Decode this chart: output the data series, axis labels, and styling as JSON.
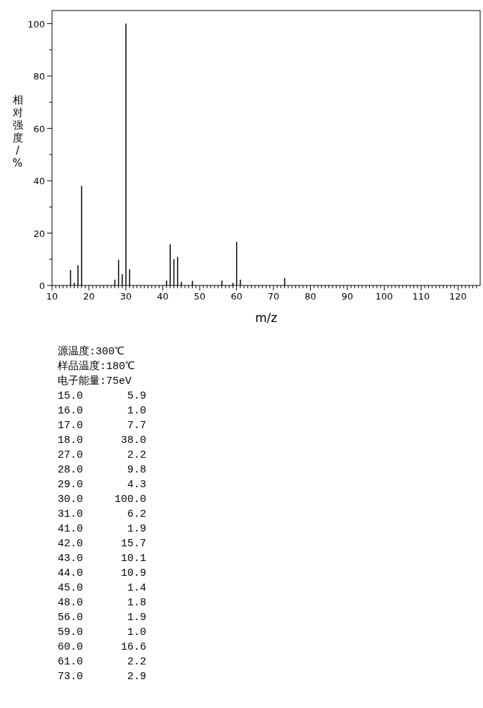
{
  "chart_data": {
    "type": "bar",
    "xlabel": "m/z",
    "ylabel": "相对强度/%",
    "color": "#000000",
    "x": [
      15,
      16,
      17,
      18,
      27,
      28,
      29,
      30,
      31,
      41,
      42,
      43,
      44,
      45,
      48,
      56,
      59,
      60,
      61,
      73
    ],
    "values": [
      5.9,
      1.0,
      7.7,
      38.0,
      2.2,
      9.8,
      4.3,
      100.0,
      6.2,
      1.9,
      15.7,
      10.1,
      10.9,
      1.4,
      1.8,
      1.9,
      1.0,
      16.6,
      2.2,
      2.9
    ],
    "xlim": [
      10,
      126
    ],
    "ylim": [
      0,
      105
    ],
    "xticks": [
      10,
      {
        "value": 11,
        "label": null
      },
      {
        "value": 12,
        "label": null
      },
      {
        "value": 13,
        "label": null
      },
      {
        "value": 14,
        "label": null
      },
      {
        "value": 15,
        "label": null
      },
      {
        "value": 16,
        "label": null
      },
      {
        "value": 17,
        "label": null
      },
      {
        "value": 18,
        "label": null
      },
      {
        "value": 19,
        "label": null
      },
      20,
      {
        "value": 21,
        "label": null
      },
      {
        "value": 22,
        "label": null
      },
      {
        "value": 23,
        "label": null
      },
      {
        "value": 24,
        "label": null
      },
      {
        "value": 25,
        "label": null
      },
      {
        "value": 26,
        "label": null
      },
      {
        "value": 27,
        "label": null
      },
      {
        "value": 28,
        "label": null
      },
      {
        "value": 29,
        "label": null
      },
      30,
      {
        "value": 31,
        "label": null
      },
      {
        "value": 32,
        "label": null
      },
      {
        "value": 33,
        "label": null
      },
      {
        "value": 34,
        "label": null
      },
      {
        "value": 35,
        "label": null
      },
      {
        "value": 36,
        "label": null
      },
      {
        "value": 37,
        "label": null
      },
      {
        "value": 38,
        "label": null
      },
      {
        "value": 39,
        "label": null
      },
      40,
      {
        "value": 41,
        "label": null
      },
      {
        "value": 42,
        "label": null
      },
      {
        "value": 43,
        "label": null
      },
      {
        "value": 44,
        "label": null
      },
      {
        "value": 45,
        "label": null
      },
      {
        "value": 46,
        "label": null
      },
      {
        "value": 47,
        "label": null
      },
      {
        "value": 48,
        "label": null
      },
      {
        "value": 49,
        "label": null
      },
      50,
      {
        "value": 51,
        "label": null
      },
      {
        "value": 52,
        "label": null
      },
      {
        "value": 53,
        "label": null
      },
      {
        "value": 54,
        "label": null
      },
      {
        "value": 55,
        "label": null
      },
      {
        "value": 56,
        "label": null
      },
      {
        "value": 57,
        "label": null
      },
      {
        "value": 58,
        "label": null
      },
      {
        "value": 59,
        "label": null
      },
      60,
      {
        "value": 61,
        "label": null
      },
      {
        "value": 62,
        "label": null
      },
      {
        "value": 63,
        "label": null
      },
      {
        "value": 64,
        "label": null
      },
      {
        "value": 65,
        "label": null
      },
      {
        "value": 66,
        "label": null
      },
      {
        "value": 67,
        "label": null
      },
      {
        "value": 68,
        "label": null
      },
      {
        "value": 69,
        "label": null
      },
      70,
      {
        "value": 71,
        "label": null
      },
      {
        "value": 72,
        "label": null
      },
      {
        "value": 73,
        "label": null
      },
      {
        "value": 74,
        "label": null
      },
      {
        "value": 75,
        "label": null
      },
      {
        "value": 76,
        "label": null
      },
      {
        "value": 77,
        "label": null
      },
      {
        "value": 78,
        "label": null
      },
      {
        "value": 79,
        "label": null
      },
      80,
      {
        "value": 81,
        "label": null
      },
      {
        "value": 82,
        "label": null
      },
      {
        "value": 83,
        "label": null
      },
      {
        "value": 84,
        "label": null
      },
      {
        "value": 85,
        "label": null
      },
      {
        "value": 86,
        "label": null
      },
      {
        "value": 87,
        "label": null
      },
      {
        "value": 88,
        "label": null
      },
      {
        "value": 89,
        "label": null
      },
      90,
      {
        "value": 91,
        "label": null
      },
      {
        "value": 92,
        "label": null
      },
      {
        "value": 93,
        "label": null
      },
      {
        "value": 94,
        "label": null
      },
      {
        "value": 95,
        "label": null
      },
      {
        "value": 96,
        "label": null
      },
      {
        "value": 97,
        "label": null
      },
      {
        "value": 98,
        "label": null
      },
      {
        "value": 99,
        "label": null
      },
      100,
      {
        "value": 101,
        "label": null
      },
      {
        "value": 102,
        "label": null
      },
      {
        "value": 103,
        "label": null
      },
      {
        "value": 104,
        "label": null
      },
      {
        "value": 105,
        "label": null
      },
      {
        "value": 106,
        "label": null
      },
      {
        "value": 107,
        "label": null
      },
      {
        "value": 108,
        "label": null
      },
      {
        "value": 109,
        "label": null
      },
      110,
      {
        "value": 111,
        "label": null
      },
      {
        "value": 112,
        "label": null
      },
      {
        "value": 113,
        "label": null
      },
      {
        "value": 114,
        "label": null
      },
      {
        "value": 115,
        "label": null
      },
      {
        "value": 116,
        "label": null
      },
      {
        "value": 117,
        "label": null
      },
      {
        "value": 118,
        "label": null
      },
      {
        "value": 119,
        "label": null
      },
      120,
      {
        "value": 121,
        "label": null
      },
      {
        "value": 122,
        "label": null
      },
      {
        "value": 123,
        "label": null
      },
      {
        "value": 124,
        "label": null
      },
      {
        "value": 125,
        "label": null
      }
    ],
    "yticks": [
      0,
      {
        "value": 10,
        "label": null
      },
      20,
      {
        "value": 30,
        "label": null
      },
      40,
      {
        "value": 50,
        "label": null
      },
      60,
      {
        "value": 70,
        "label": null
      },
      80,
      {
        "value": 90,
        "label": null
      },
      100
    ],
    "annotations": [
      "源温度:300℃",
      "样品温度:180℃",
      "电子能量:75eV",
      "15.0       5.9",
      "16.0       1.0",
      "17.0       7.7",
      "18.0      38.0",
      "27.0       2.2",
      "28.0       9.8",
      "29.0       4.3",
      "30.0     100.0",
      "31.0       6.2",
      "41.0       1.9",
      "42.0      15.7",
      "43.0      10.1",
      "44.0      10.9",
      "45.0       1.4",
      "48.0       1.8",
      "56.0       1.9",
      "59.0       1.0",
      "60.0      16.6",
      "61.0       2.2",
      "73.0       2.9"
    ]
  }
}
